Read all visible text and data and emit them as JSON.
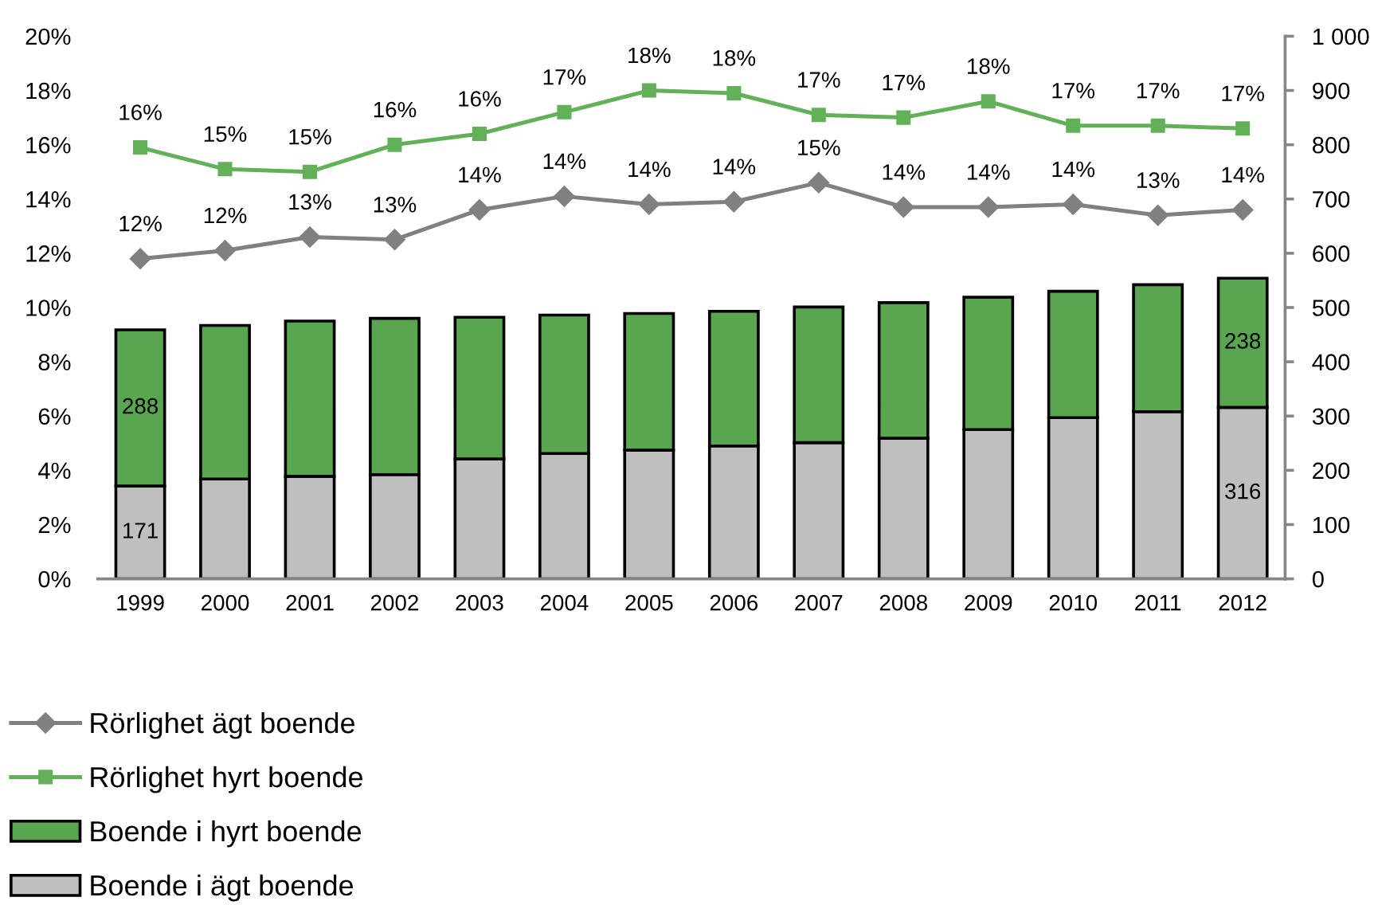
{
  "chart_data": {
    "type": "bar",
    "stacked": true,
    "legend": "bottom left",
    "grid": false,
    "categories": [
      "1999",
      "2000",
      "2001",
      "2002",
      "2003",
      "2004",
      "2005",
      "2006",
      "2007",
      "2008",
      "2009",
      "2010",
      "2011",
      "2012"
    ],
    "ylim": [
      0,
      20
    ],
    "yticks": [
      {
        "value": 0,
        "label": "0%"
      },
      {
        "value": 2,
        "label": "2%"
      },
      {
        "value": 4,
        "label": "4%"
      },
      {
        "value": 6,
        "label": "6%"
      },
      {
        "value": 8,
        "label": "8%"
      },
      {
        "value": 10,
        "label": "10%"
      },
      {
        "value": 12,
        "label": "12%"
      },
      {
        "value": 14,
        "label": "14%"
      },
      {
        "value": 16,
        "label": "16%"
      },
      {
        "value": 18,
        "label": "18%"
      },
      {
        "value": 20,
        "label": "20%"
      }
    ],
    "y2lim": [
      0,
      1000
    ],
    "y2ticks": [
      0,
      100,
      200,
      300,
      400,
      500,
      600,
      700,
      800,
      900,
      {
        "value": 1000,
        "label": "1 000"
      }
    ],
    "series": [
      {
        "name": "Boende i ägt boende",
        "axis": "y2",
        "color": "#bfbfbf",
        "values": [
          171,
          184,
          189,
          192,
          221,
          231,
          237,
          245,
          251,
          259,
          275,
          297,
          308,
          316
        ],
        "value_labels": [
          "171",
          null,
          null,
          null,
          null,
          null,
          null,
          null,
          null,
          null,
          null,
          null,
          null,
          "316"
        ]
      },
      {
        "name": "Boende i hyrt boende",
        "axis": "y2",
        "color": "#5aa550",
        "values": [
          288,
          283,
          286,
          288,
          261,
          255,
          252,
          248,
          250,
          250,
          244,
          233,
          234,
          238
        ],
        "value_labels": [
          "288",
          null,
          null,
          null,
          null,
          null,
          null,
          null,
          null,
          null,
          null,
          null,
          null,
          "238"
        ]
      },
      {
        "name": "Rörlighet ägt boende",
        "type": "line",
        "axis": "y",
        "color": "#808080",
        "marker": "diamond",
        "line_style": "solid",
        "values": [
          11.8,
          12.1,
          12.6,
          12.5,
          13.6,
          14.1,
          13.8,
          13.9,
          14.6,
          13.7,
          13.7,
          13.8,
          13.4,
          13.6
        ],
        "value_labels": [
          "12%",
          "12%",
          "13%",
          "13%",
          "14%",
          "14%",
          "14%",
          "14%",
          "15%",
          "14%",
          "14%",
          "14%",
          "13%",
          "14%"
        ]
      },
      {
        "name": "Rörlighet hyrt boende",
        "type": "line",
        "axis": "y",
        "color": "#62b159",
        "marker": "square",
        "line_style": "solid",
        "values": [
          15.9,
          15.1,
          15.0,
          16.0,
          16.4,
          17.2,
          18.0,
          17.9,
          17.1,
          17.0,
          17.6,
          16.7,
          16.7,
          16.6
        ],
        "value_labels": [
          "16%",
          "15%",
          "15%",
          "16%",
          "16%",
          "17%",
          "18%",
          "18%",
          "17%",
          "17%",
          "18%",
          "17%",
          "17%",
          "17%"
        ]
      }
    ]
  }
}
